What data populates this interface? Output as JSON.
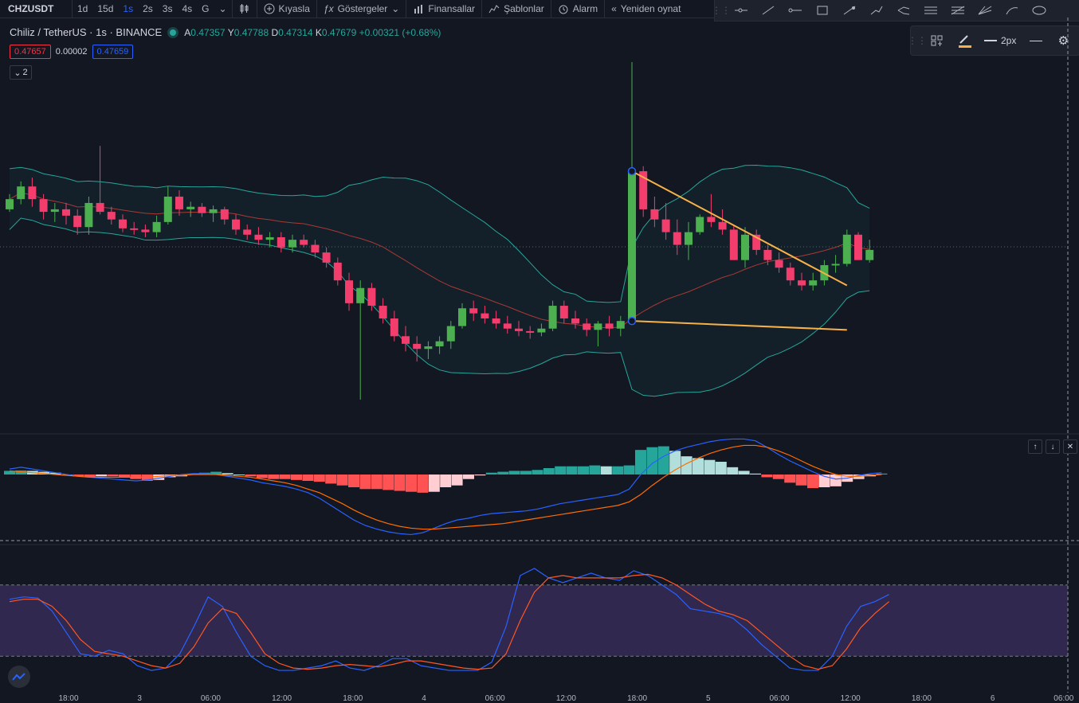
{
  "toolbar": {
    "symbol": "CHZUSDT",
    "timeframes": [
      "1d",
      "15d",
      "1s",
      "2s",
      "3s",
      "4s",
      "G"
    ],
    "compare_label": "Kıyasla",
    "indicators_label": "Göstergeler",
    "financials_label": "Finansallar",
    "templates_label": "Şablonlar",
    "alert_label": "Alarm",
    "replay_label": "Yeniden oynat"
  },
  "legend": {
    "title": "Chiliz / TetherUS · 1s · BINANCE",
    "open_label": "A",
    "open_value": "0.47357",
    "high_label": "Y",
    "high_value": "0.47788",
    "low_label": "D",
    "low_value": "0.47314",
    "close_label": "K",
    "close_value": "0.47679",
    "change": "+0.00321 (+0.68%)"
  },
  "prices": {
    "bid": "0.47657",
    "spread": "0.00002",
    "ask": "0.47659"
  },
  "collapse_count": "2",
  "floatbar": {
    "width_label": "2px"
  },
  "time_axis": [
    "18:00",
    "3",
    "06:00",
    "12:00",
    "18:00",
    "4",
    "06:00",
    "12:00",
    "18:00",
    "5",
    "06:00",
    "12:00",
    "18:00",
    "6",
    "06:00"
  ],
  "colors": {
    "up": "#4caf50",
    "down": "#f23d6d",
    "band": "#26a69a",
    "basis": "#a83a36",
    "macd": "#2962ff",
    "signal": "#ff6d00",
    "stoch_k": "#2962ff",
    "stoch_d": "#ff5722",
    "stoch_band": "#7e57c2",
    "trendline": "#f7b148"
  },
  "chart_data": [
    {
      "type": "candlestick",
      "title": "Chiliz / TetherUS · 1s · BINANCE",
      "candles": [
        [
          0.474,
          0.4752,
          0.4738,
          0.4748
        ],
        [
          0.4748,
          0.4762,
          0.4744,
          0.4758
        ],
        [
          0.4758,
          0.4765,
          0.4742,
          0.4748
        ],
        [
          0.4748,
          0.4752,
          0.4732,
          0.4738
        ],
        [
          0.4738,
          0.4745,
          0.473,
          0.474
        ],
        [
          0.474,
          0.4745,
          0.4728,
          0.4735
        ],
        [
          0.4735,
          0.474,
          0.472,
          0.4726
        ],
        [
          0.4726,
          0.475,
          0.472,
          0.4745
        ],
        [
          0.4745,
          0.479,
          0.4736,
          0.4738
        ],
        [
          0.4738,
          0.4742,
          0.4728,
          0.4732
        ],
        [
          0.4732,
          0.4736,
          0.4722,
          0.4725
        ],
        [
          0.4725,
          0.473,
          0.472,
          0.4724
        ],
        [
          0.4724,
          0.4728,
          0.4718,
          0.4722
        ],
        [
          0.4722,
          0.4735,
          0.4718,
          0.473
        ],
        [
          0.473,
          0.4758,
          0.4728,
          0.475
        ],
        [
          0.475,
          0.4755,
          0.4735,
          0.474
        ],
        [
          0.474,
          0.4746,
          0.4734,
          0.4742
        ],
        [
          0.4742,
          0.4745,
          0.4734,
          0.4737
        ],
        [
          0.4737,
          0.4743,
          0.473,
          0.474
        ],
        [
          0.474,
          0.4742,
          0.4728,
          0.4732
        ],
        [
          0.4732,
          0.4736,
          0.472,
          0.4724
        ],
        [
          0.4724,
          0.4728,
          0.4716,
          0.472
        ],
        [
          0.472,
          0.4726,
          0.4712,
          0.4716
        ],
        [
          0.4716,
          0.4722,
          0.471,
          0.4718
        ],
        [
          0.4718,
          0.4722,
          0.4706,
          0.471
        ],
        [
          0.471,
          0.472,
          0.4706,
          0.4716
        ],
        [
          0.4716,
          0.472,
          0.471,
          0.4712
        ],
        [
          0.4712,
          0.4716,
          0.4702,
          0.4706
        ],
        [
          0.4706,
          0.471,
          0.4694,
          0.4698
        ],
        [
          0.4698,
          0.4702,
          0.468,
          0.4684
        ],
        [
          0.4684,
          0.469,
          0.466,
          0.4666
        ],
        [
          0.4666,
          0.4684,
          0.459,
          0.4678
        ],
        [
          0.4678,
          0.4682,
          0.466,
          0.4664
        ],
        [
          0.4664,
          0.467,
          0.465,
          0.4654
        ],
        [
          0.4654,
          0.466,
          0.4636,
          0.464
        ],
        [
          0.464,
          0.4648,
          0.4628,
          0.4634
        ],
        [
          0.4634,
          0.464,
          0.462,
          0.463
        ],
        [
          0.463,
          0.4636,
          0.4622,
          0.4632
        ],
        [
          0.4632,
          0.464,
          0.4626,
          0.4636
        ],
        [
          0.4636,
          0.4652,
          0.463,
          0.4648
        ],
        [
          0.4648,
          0.4666,
          0.4646,
          0.4662
        ],
        [
          0.4662,
          0.4668,
          0.4652,
          0.4658
        ],
        [
          0.4658,
          0.4664,
          0.465,
          0.4654
        ],
        [
          0.4654,
          0.466,
          0.4646,
          0.465
        ],
        [
          0.465,
          0.4656,
          0.4642,
          0.4646
        ],
        [
          0.4646,
          0.4652,
          0.464,
          0.4644
        ],
        [
          0.4644,
          0.4648,
          0.4638,
          0.4643
        ],
        [
          0.4643,
          0.465,
          0.464,
          0.4646
        ],
        [
          0.4646,
          0.4668,
          0.4644,
          0.4664
        ],
        [
          0.4664,
          0.4668,
          0.465,
          0.4654
        ],
        [
          0.4654,
          0.466,
          0.4646,
          0.465
        ],
        [
          0.465,
          0.4654,
          0.464,
          0.4645
        ],
        [
          0.4645,
          0.4652,
          0.4632,
          0.465
        ],
        [
          0.465,
          0.4656,
          0.464,
          0.4646
        ],
        [
          0.4646,
          0.4656,
          0.464,
          0.4652
        ],
        [
          0.4652,
          0.4856,
          0.465,
          0.477
        ],
        [
          0.477,
          0.4774,
          0.4734,
          0.474
        ],
        [
          0.474,
          0.475,
          0.4726,
          0.4732
        ],
        [
          0.4732,
          0.4745,
          0.4716,
          0.4722
        ],
        [
          0.4722,
          0.4732,
          0.4704,
          0.4712
        ],
        [
          0.4712,
          0.473,
          0.47,
          0.4722
        ],
        [
          0.4722,
          0.4736,
          0.472,
          0.4734
        ],
        [
          0.4734,
          0.4752,
          0.4726,
          0.473
        ],
        [
          0.473,
          0.474,
          0.472,
          0.4724
        ],
        [
          0.4724,
          0.4728,
          0.47,
          0.47
        ],
        [
          0.47,
          0.4726,
          0.4694,
          0.472
        ],
        [
          0.472,
          0.4724,
          0.4704,
          0.4708
        ],
        [
          0.4708,
          0.4712,
          0.4696,
          0.47
        ],
        [
          0.47,
          0.4706,
          0.469,
          0.4694
        ],
        [
          0.4694,
          0.4698,
          0.468,
          0.4684
        ],
        [
          0.4684,
          0.469,
          0.4676,
          0.468
        ],
        [
          0.468,
          0.469,
          0.4676,
          0.4684
        ],
        [
          0.4684,
          0.47,
          0.468,
          0.4696
        ],
        [
          0.4696,
          0.4704,
          0.469,
          0.4697
        ],
        [
          0.4697,
          0.4724,
          0.4695,
          0.472
        ],
        [
          0.472,
          0.4722,
          0.47,
          0.47
        ],
        [
          0.47,
          0.4716,
          0.4698,
          0.4708
        ]
      ]
    },
    {
      "type": "bar",
      "title": "",
      "histogram": [
        0.4,
        0.45,
        0.4,
        0.3,
        0.2,
        0.0,
        -0.2,
        -0.3,
        -0.2,
        -0.2,
        -0.3,
        -0.5,
        -0.7,
        -0.6,
        -0.3,
        -0.2,
        0.1,
        0.2,
        0.3,
        0.15,
        0.0,
        -0.2,
        -0.4,
        -0.5,
        -0.5,
        -0.6,
        -0.7,
        -0.8,
        -1.0,
        -1.2,
        -1.4,
        -1.6,
        -1.6,
        -1.7,
        -1.8,
        -1.9,
        -2.0,
        -1.9,
        -1.4,
        -1.2,
        -0.5,
        -0.1,
        0.2,
        0.3,
        0.4,
        0.4,
        0.5,
        0.7,
        0.9,
        0.9,
        0.9,
        1.0,
        0.9,
        0.9,
        1.0,
        2.7,
        3.0,
        3.1,
        2.6,
        2.0,
        1.8,
        1.6,
        1.4,
        0.8,
        0.4,
        0.1,
        -0.3,
        -0.5,
        -0.9,
        -1.2,
        -1.5,
        -1.4,
        -1.3,
        -0.8,
        -0.5,
        -0.2,
        0.1
      ],
      "macd": [
        0.6,
        0.8,
        0.6,
        0.4,
        0.2,
        0.0,
        -0.2,
        -0.3,
        -0.4,
        -0.5,
        -0.6,
        -0.7,
        -0.6,
        -0.4,
        -0.2,
        0.0,
        0.1,
        0.1,
        0.0,
        -0.2,
        -0.4,
        -0.6,
        -0.9,
        -1.1,
        -1.3,
        -1.6,
        -2.0,
        -2.6,
        -3.4,
        -4.2,
        -5.0,
        -5.6,
        -6.0,
        -6.3,
        -6.5,
        -6.6,
        -6.4,
        -5.9,
        -5.4,
        -5.0,
        -4.8,
        -4.5,
        -4.3,
        -4.2,
        -4.1,
        -4.0,
        -3.8,
        -3.5,
        -3.2,
        -3.0,
        -2.8,
        -2.6,
        -2.4,
        -2.2,
        -1.6,
        0.0,
        1.2,
        2.0,
        2.6,
        3.0,
        3.3,
        3.6,
        3.8,
        3.9,
        3.9,
        3.7,
        3.0,
        2.2,
        1.5,
        0.9,
        0.3,
        -0.2,
        -0.5,
        -0.4,
        -0.1,
        0.1,
        0.2
      ],
      "signal": [
        0.4,
        0.3,
        0.2,
        0.1,
        0.0,
        -0.1,
        -0.2,
        -0.3,
        -0.3,
        -0.3,
        -0.3,
        -0.3,
        -0.3,
        -0.2,
        -0.1,
        -0.1,
        0.0,
        0.0,
        0.0,
        -0.1,
        -0.2,
        -0.3,
        -0.5,
        -0.7,
        -0.9,
        -1.2,
        -1.6,
        -2.0,
        -2.6,
        -3.2,
        -3.9,
        -4.5,
        -5.0,
        -5.4,
        -5.7,
        -5.9,
        -6.0,
        -6.0,
        -5.9,
        -5.8,
        -5.7,
        -5.6,
        -5.5,
        -5.4,
        -5.2,
        -5.0,
        -4.8,
        -4.6,
        -4.4,
        -4.2,
        -4.0,
        -3.8,
        -3.6,
        -3.4,
        -3.0,
        -2.2,
        -1.2,
        -0.3,
        0.5,
        1.2,
        1.8,
        2.3,
        2.7,
        3.0,
        3.2,
        3.2,
        3.0,
        2.6,
        2.1,
        1.5,
        0.9,
        0.4,
        0.0,
        -0.2,
        -0.2,
        -0.1,
        0.0
      ],
      "ylim": [
        -7,
        3.5
      ]
    },
    {
      "type": "line",
      "title": "",
      "k": [
        68,
        70,
        69,
        58,
        40,
        22,
        20,
        25,
        22,
        12,
        8,
        10,
        22,
        45,
        70,
        62,
        40,
        20,
        12,
        8,
        8,
        10,
        12,
        16,
        10,
        8,
        12,
        18,
        18,
        12,
        10,
        8,
        8,
        8,
        15,
        45,
        88,
        94,
        86,
        82,
        86,
        90,
        86,
        84,
        92,
        88,
        80,
        72,
        60,
        58,
        56,
        52,
        42,
        30,
        20,
        10,
        8,
        8,
        20,
        45,
        62,
        66,
        72
      ],
      "d": [
        66,
        68,
        68,
        62,
        50,
        34,
        24,
        22,
        20,
        16,
        12,
        10,
        14,
        28,
        48,
        60,
        56,
        40,
        22,
        14,
        10,
        9,
        10,
        12,
        13,
        12,
        11,
        13,
        16,
        16,
        14,
        12,
        10,
        9,
        10,
        22,
        50,
        74,
        86,
        88,
        86,
        86,
        86,
        86,
        88,
        89,
        86,
        80,
        72,
        64,
        58,
        55,
        50,
        40,
        30,
        20,
        12,
        9,
        12,
        26,
        44,
        56,
        66
      ],
      "ylim": [
        0,
        100
      ],
      "bands": [
        80,
        20
      ]
    }
  ]
}
